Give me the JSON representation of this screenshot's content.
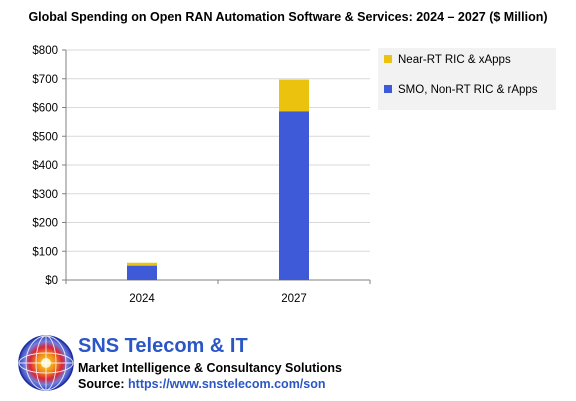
{
  "chart_data": {
    "type": "bar",
    "stacked": true,
    "title": "Global Spending on Open RAN Automation Software & Services: 2024 – 2027 ($ Million)",
    "categories": [
      "2024",
      "2027"
    ],
    "series": [
      {
        "name": "SMO, Non-RT RIC & rApps",
        "values": [
          50,
          587
        ],
        "color": "#3f5ad8"
      },
      {
        "name": "Near-RT RIC & xApps",
        "values": [
          10,
          110
        ],
        "color": "#ebc20e"
      }
    ],
    "legend_order": [
      "Near-RT RIC & xApps",
      "SMO, Non-RT RIC & rApps"
    ],
    "legend_position": "right",
    "ylim": [
      0,
      800
    ],
    "yticks": [
      0,
      100,
      200,
      300,
      400,
      500,
      600,
      700,
      800
    ],
    "ytick_labels": [
      "$0",
      "$100",
      "$200",
      "$300",
      "$400",
      "$500",
      "$600",
      "$700",
      "$800"
    ],
    "grid": true,
    "xlabel": "",
    "ylabel": ""
  },
  "brand": {
    "name": "SNS Telecom & IT",
    "tagline": "Market Intelligence & Consultancy Solutions",
    "source_label": "Source: ",
    "source_url": "https://www.snstelecom.com/son",
    "logo_icon": "globe-logo-icon"
  }
}
